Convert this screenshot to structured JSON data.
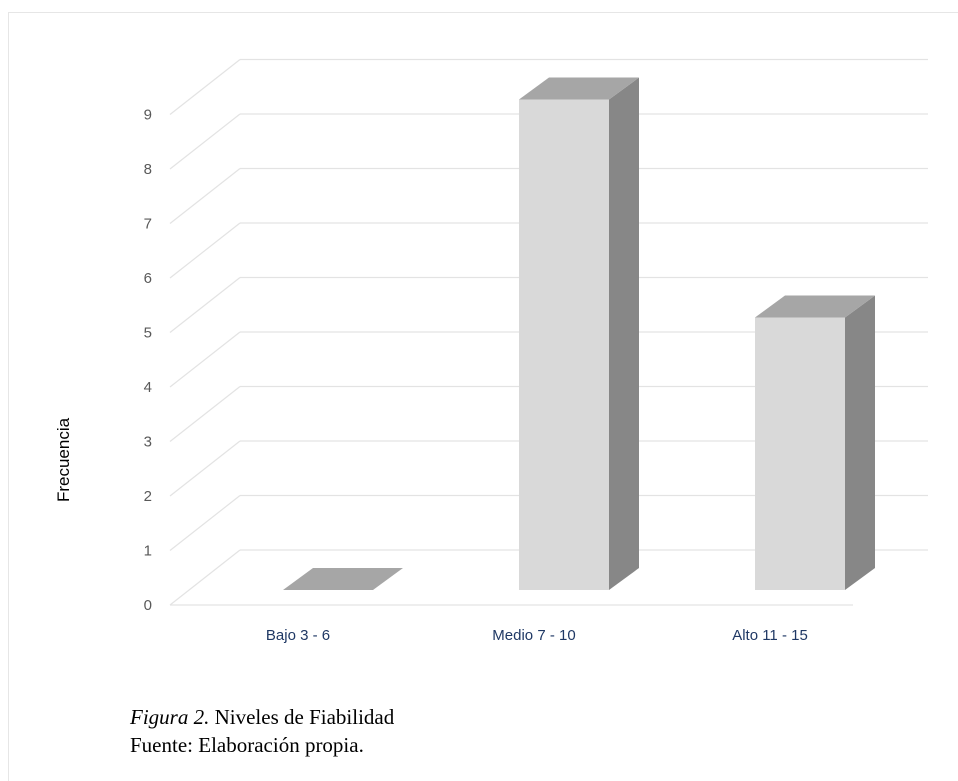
{
  "caption": {
    "figure_label": "Figura 2.",
    "figure_title": " Niveles de Fiabilidad",
    "source": "Fuente: Elaboración propia."
  },
  "chart_data": {
    "type": "bar",
    "categories": [
      "Bajo 3 - 6",
      "Medio 7 - 10",
      "Alto 11 - 15"
    ],
    "values": [
      0,
      9,
      5
    ],
    "title": "",
    "xlabel": "",
    "ylabel": "Frecuencia",
    "ylim": [
      0,
      9
    ],
    "yticks": [
      0,
      1,
      2,
      3,
      4,
      5,
      6,
      7,
      8,
      9
    ],
    "grid": true,
    "legend": "none",
    "style": "3d-column",
    "colors": {
      "front": "#d9d9d9",
      "side": "#878787",
      "top": "#a6a6a6",
      "grid": "#e3e3e3",
      "tick": "#595959",
      "category": "#1f3864"
    }
  }
}
